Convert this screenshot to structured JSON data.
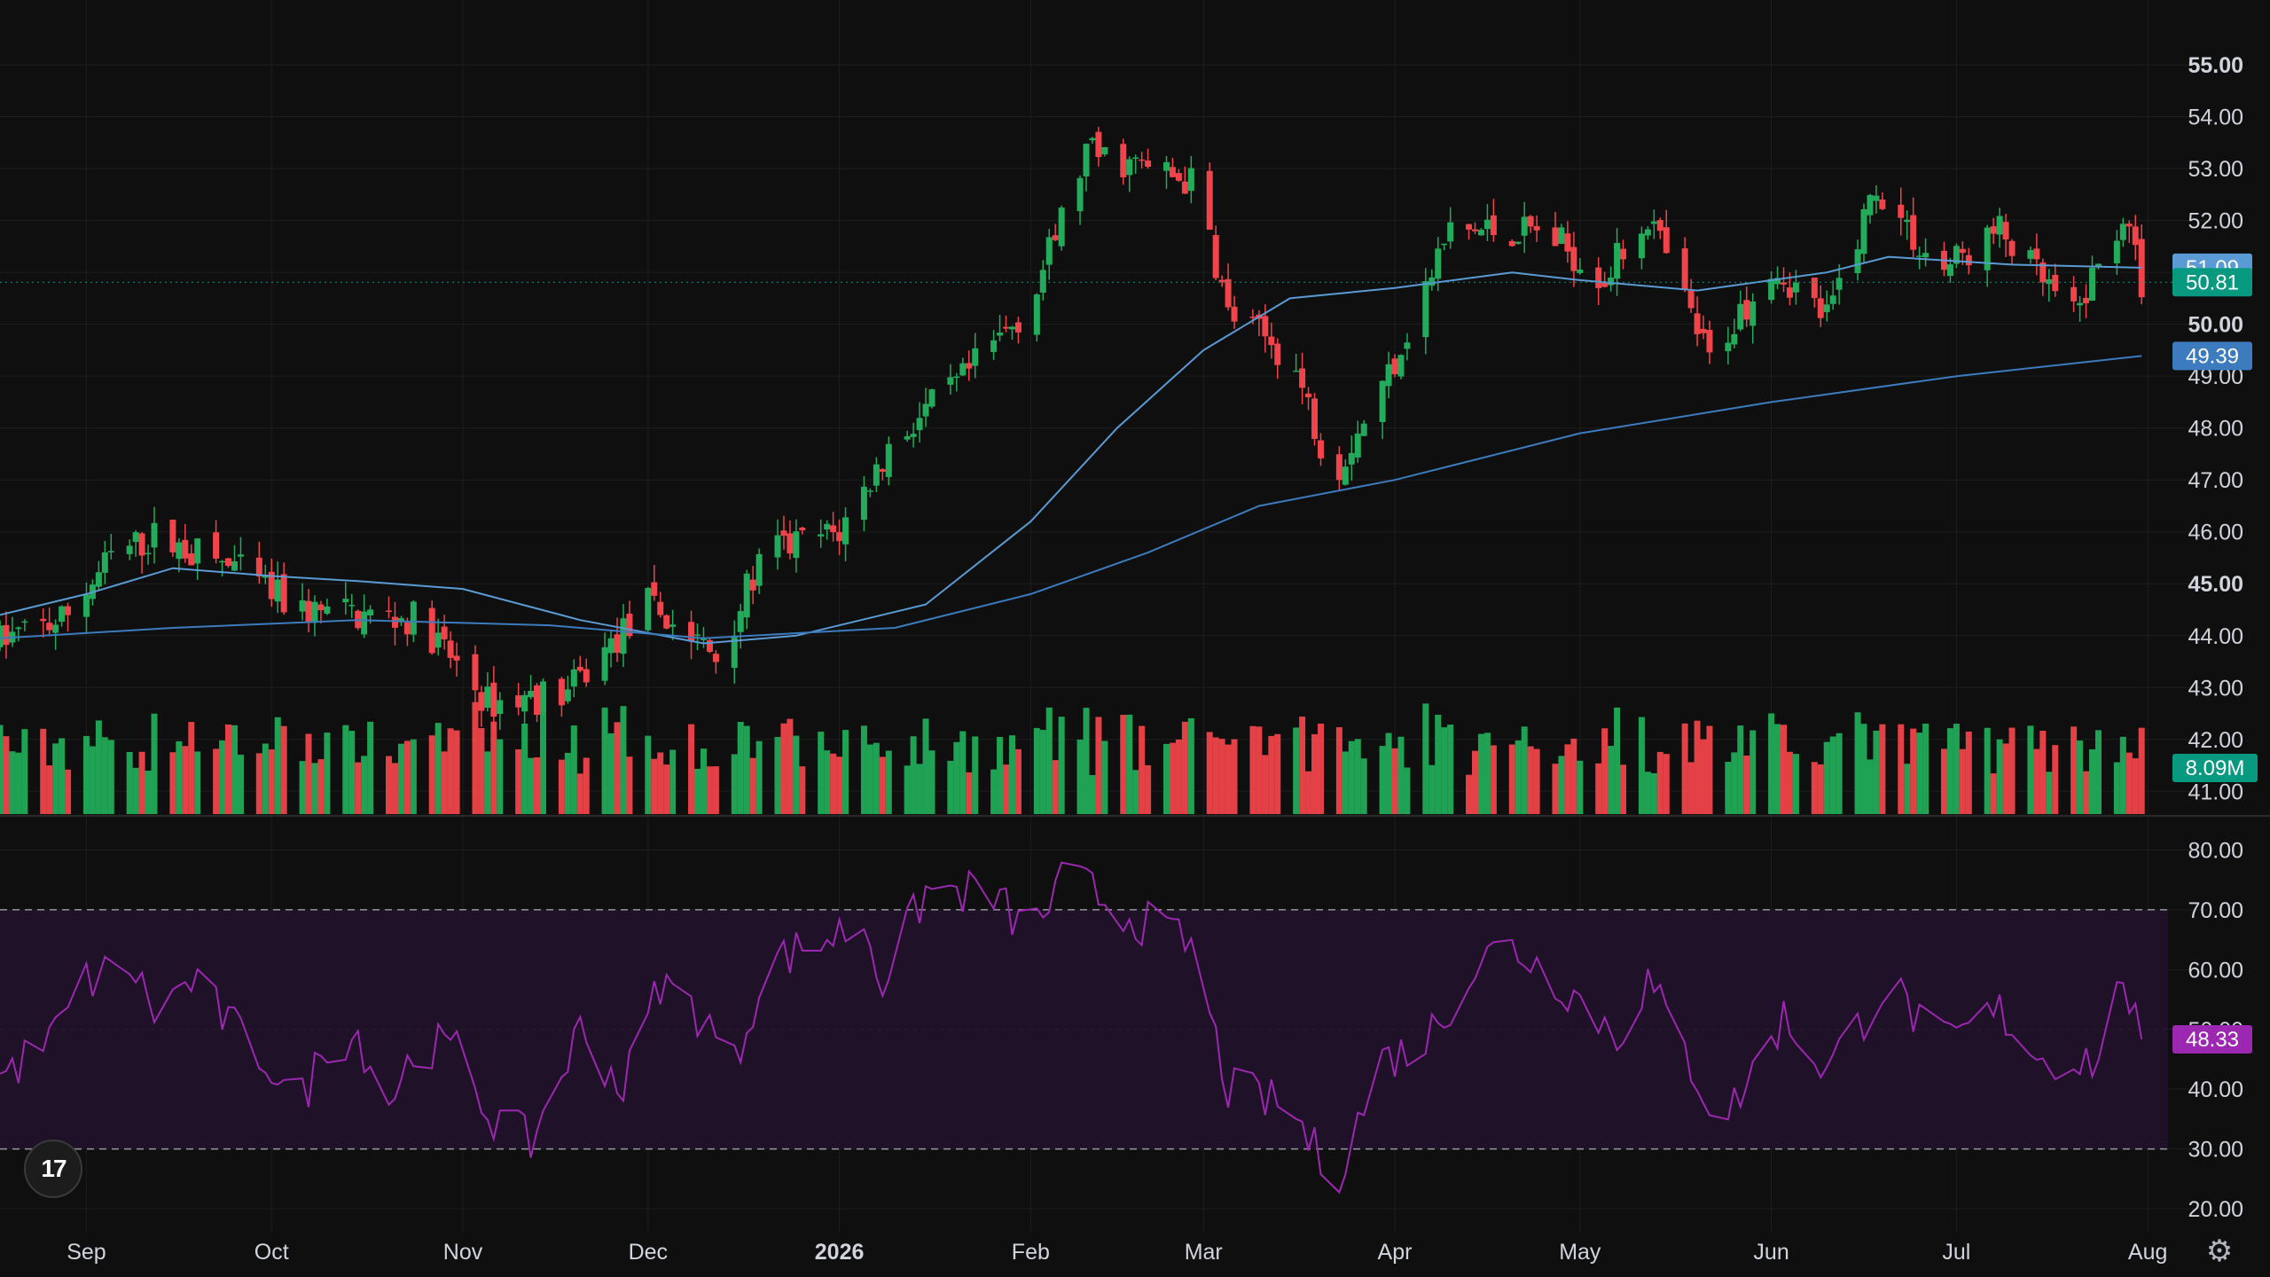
{
  "chart_data": [
    {
      "type": "candlestick",
      "price_axis": {
        "ticks": [
          "55.00",
          "54.00",
          "53.00",
          "52.00",
          "51.00",
          "50.00",
          "49.00",
          "48.00",
          "47.00",
          "46.00",
          "45.00",
          "44.00",
          "43.00",
          "42.00",
          "41.00"
        ],
        "bold_ticks": [
          "55.00",
          "50.00",
          "45.00"
        ],
        "ylim": [
          40.8,
          55.6
        ]
      },
      "time_axis": {
        "labels": [
          "Sep",
          "Oct",
          "Nov",
          "Dec",
          "2026",
          "Feb",
          "Mar",
          "Apr",
          "May",
          "Jun",
          "Jul",
          "Aug"
        ],
        "bold_labels": [
          "2026"
        ],
        "range": [
          "2025-08-18",
          "2026-08-05"
        ]
      },
      "grid": true,
      "price_tags": [
        {
          "value": "51.09",
          "color": "#5b9bd5",
          "y": 51.09
        },
        {
          "value": "50.81",
          "color": "#089981",
          "y": 50.81
        },
        {
          "value": "49.39",
          "color": "#3d7bbf",
          "y": 49.39
        }
      ],
      "last_price_line": 50.81,
      "moving_averages": [
        {
          "color": "#5b9bd5",
          "points": [
            [
              "2025-08-18",
              44.4
            ],
            [
              "2025-09-01",
              44.8
            ],
            [
              "2025-09-15",
              45.3
            ],
            [
              "2025-10-01",
              45.15
            ],
            [
              "2025-10-15",
              45.05
            ],
            [
              "2025-11-01",
              44.9
            ],
            [
              "2025-11-20",
              44.3
            ],
            [
              "2025-12-10",
              43.85
            ],
            [
              "2025-12-25",
              44.0
            ],
            [
              "2026-01-15",
              44.6
            ],
            [
              "2026-02-01",
              46.2
            ],
            [
              "2026-02-15",
              48.0
            ],
            [
              "2026-03-01",
              49.5
            ],
            [
              "2026-03-15",
              50.5
            ],
            [
              "2026-04-01",
              50.7
            ],
            [
              "2026-04-20",
              51.0
            ],
            [
              "2026-05-01",
              50.85
            ],
            [
              "2026-05-20",
              50.65
            ],
            [
              "2026-06-10",
              51.0
            ],
            [
              "2026-06-20",
              51.3
            ],
            [
              "2026-07-10",
              51.15
            ],
            [
              "2026-07-31",
              51.09
            ]
          ]
        },
        {
          "color": "#3d7bbf",
          "points": [
            [
              "2025-08-18",
              43.95
            ],
            [
              "2025-09-15",
              44.15
            ],
            [
              "2025-10-15",
              44.3
            ],
            [
              "2025-11-15",
              44.2
            ],
            [
              "2025-12-10",
              43.95
            ],
            [
              "2026-01-10",
              44.15
            ],
            [
              "2026-02-01",
              44.8
            ],
            [
              "2026-02-20",
              45.6
            ],
            [
              "2026-03-10",
              46.5
            ],
            [
              "2026-04-01",
              47.0
            ],
            [
              "2026-05-01",
              47.9
            ],
            [
              "2026-06-01",
              48.5
            ],
            [
              "2026-07-01",
              49.0
            ],
            [
              "2026-07-31",
              49.39
            ]
          ]
        }
      ],
      "candle_keypoints": [
        [
          "2025-08-18",
          43.9
        ],
        [
          "2025-08-28",
          44.3
        ],
        [
          "2025-09-05",
          45.5
        ],
        [
          "2025-09-12",
          45.9
        ],
        [
          "2025-09-25",
          45.3
        ],
        [
          "2025-10-05",
          44.5
        ],
        [
          "2025-10-25",
          44.3
        ],
        [
          "2025-11-05",
          42.7
        ],
        [
          "2025-11-18",
          42.9
        ],
        [
          "2025-12-01",
          44.6
        ],
        [
          "2025-12-12",
          43.6
        ],
        [
          "2025-12-20",
          45.6
        ],
        [
          "2026-01-01",
          46.0
        ],
        [
          "2026-01-10",
          47.8
        ],
        [
          "2026-01-20",
          48.8
        ],
        [
          "2026-02-01",
          50.4
        ],
        [
          "2026-02-10",
          53.3
        ],
        [
          "2026-02-20",
          53.0
        ],
        [
          "2026-02-28",
          52.7
        ],
        [
          "2026-03-05",
          50.2
        ],
        [
          "2026-03-15",
          49.4
        ],
        [
          "2026-03-22",
          47.1
        ],
        [
          "2026-03-30",
          48.8
        ],
        [
          "2026-04-10",
          51.8
        ],
        [
          "2026-04-25",
          51.8
        ],
        [
          "2026-05-05",
          50.9
        ],
        [
          "2026-05-12",
          52.1
        ],
        [
          "2026-05-22",
          49.3
        ],
        [
          "2026-06-01",
          51.2
        ],
        [
          "2026-06-10",
          50.1
        ],
        [
          "2026-06-18",
          52.7
        ],
        [
          "2026-06-28",
          51.0
        ],
        [
          "2026-07-08",
          51.8
        ],
        [
          "2026-07-20",
          50.1
        ],
        [
          "2026-07-28",
          52.1
        ],
        [
          "2026-07-31",
          50.8
        ]
      ],
      "volume": {
        "last_label": "8.09M",
        "last_color": "#089981"
      }
    },
    {
      "type": "line",
      "indicator": "rsi",
      "axis_ticks": [
        "80.00",
        "70.00",
        "60.00",
        "50.00",
        "40.00",
        "30.00",
        "20.00"
      ],
      "ylim": [
        16,
        82
      ],
      "bands": [
        70,
        30
      ],
      "line_color": "#9c27b0",
      "band_fill": "#1f1127",
      "last_label": "48.33",
      "last_value": 48.33,
      "keypoints": [
        [
          "2025-08-18",
          42
        ],
        [
          "2025-08-26",
          48
        ],
        [
          "2025-09-01",
          58
        ],
        [
          "2025-09-08",
          61
        ],
        [
          "2025-09-12",
          53
        ],
        [
          "2025-09-18",
          58
        ],
        [
          "2025-09-25",
          50
        ],
        [
          "2025-10-01",
          44
        ],
        [
          "2025-10-05",
          36
        ],
        [
          "2025-10-10",
          48
        ],
        [
          "2025-10-15",
          49
        ],
        [
          "2025-10-20",
          38
        ],
        [
          "2025-10-25",
          48
        ],
        [
          "2025-11-01",
          46
        ],
        [
          "2025-11-05",
          36
        ],
        [
          "2025-11-12",
          31
        ],
        [
          "2025-11-20",
          50
        ],
        [
          "2025-11-27",
          40
        ],
        [
          "2025-12-03",
          58
        ],
        [
          "2025-12-10",
          52
        ],
        [
          "2025-12-15",
          44
        ],
        [
          "2025-12-20",
          61
        ],
        [
          "2026-01-01",
          66
        ],
        [
          "2026-01-05",
          68
        ],
        [
          "2026-01-08",
          58
        ],
        [
          "2026-01-15",
          73
        ],
        [
          "2026-01-25",
          73
        ],
        [
          "2026-02-01",
          66
        ],
        [
          "2026-02-07",
          76
        ],
        [
          "2026-02-15",
          70
        ],
        [
          "2026-02-27",
          64
        ],
        [
          "2026-03-02",
          52
        ],
        [
          "2026-03-05",
          40
        ],
        [
          "2026-03-15",
          37
        ],
        [
          "2026-03-20",
          28
        ],
        [
          "2026-03-22",
          24
        ],
        [
          "2026-03-30",
          45
        ],
        [
          "2026-04-05",
          47
        ],
        [
          "2026-04-15",
          62
        ],
        [
          "2026-04-20",
          64
        ],
        [
          "2026-04-30",
          56
        ],
        [
          "2026-05-07",
          49
        ],
        [
          "2026-05-12",
          58
        ],
        [
          "2026-05-20",
          42
        ],
        [
          "2026-05-24",
          34
        ],
        [
          "2026-06-03",
          52
        ],
        [
          "2026-06-10",
          43
        ],
        [
          "2026-06-20",
          58
        ],
        [
          "2026-06-28",
          47
        ],
        [
          "2026-07-08",
          53
        ],
        [
          "2026-07-15",
          45
        ],
        [
          "2026-07-25",
          45
        ],
        [
          "2026-07-28",
          60
        ],
        [
          "2026-07-31",
          46
        ],
        [
          "2026-08-02",
          48.33
        ]
      ]
    }
  ],
  "logo": {
    "text": "17"
  },
  "settings_icon": "gear-icon"
}
